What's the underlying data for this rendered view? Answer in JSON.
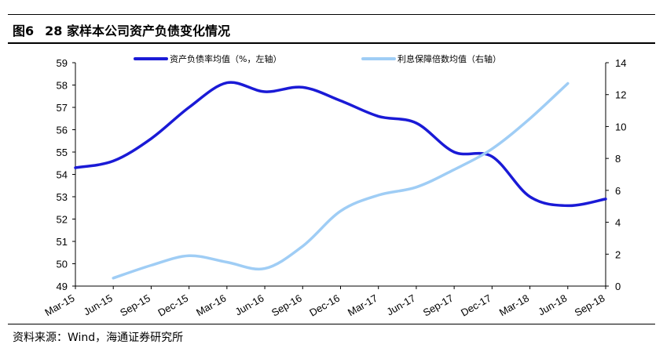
{
  "header": {
    "figure_number": "图6",
    "title": "28 家样本公司资产负债变化情况"
  },
  "footer": {
    "source": "资料来源：Wind，海通证券研究所"
  },
  "chart_data": {
    "type": "line",
    "x_labels": [
      "Mar-15",
      "Jun-15",
      "Sep-15",
      "Dec-15",
      "Mar-16",
      "Jun-16",
      "Sep-16",
      "Dec-16",
      "Mar-17",
      "Jun-17",
      "Sep-17",
      "Dec-17",
      "Mar-18",
      "Jun-18",
      "Sep-18"
    ],
    "y_left": {
      "range": [
        49,
        59
      ],
      "ticks": [
        49,
        50,
        51,
        52,
        53,
        54,
        55,
        56,
        57,
        58,
        59
      ]
    },
    "y_right": {
      "range": [
        0,
        14
      ],
      "ticks": [
        0,
        2,
        4,
        6,
        8,
        10,
        12,
        14
      ]
    },
    "legend_position": "top",
    "series": [
      {
        "name": "资产负债率均值（%，左轴）",
        "axis": "left",
        "color": "#1a1ad6",
        "x": [
          "Mar-15",
          "Jun-15",
          "Sep-15",
          "Dec-15",
          "Mar-16",
          "Jun-16",
          "Sep-16",
          "Dec-16",
          "Mar-17",
          "Jun-17",
          "Sep-17",
          "Dec-17",
          "Mar-18",
          "Jun-18",
          "Sep-18"
        ],
        "values": [
          54.3,
          54.6,
          55.6,
          57.0,
          58.1,
          57.7,
          57.9,
          57.3,
          56.6,
          56.3,
          55.0,
          54.8,
          53.0,
          52.6,
          52.9
        ]
      },
      {
        "name": "利息保障倍数均值（右轴）",
        "axis": "right",
        "color": "#9fcdf5",
        "x": [
          "Jun-15",
          "Sep-15",
          "Dec-15",
          "Mar-16",
          "Jun-16",
          "Sep-16",
          "Dec-16",
          "Mar-17",
          "Jun-17",
          "Sep-17",
          "Dec-17",
          "Mar-18",
          "Jun-18"
        ],
        "values": [
          0.5,
          1.3,
          1.9,
          1.5,
          1.1,
          2.5,
          4.7,
          5.7,
          6.2,
          7.3,
          8.6,
          10.5,
          12.7
        ]
      }
    ],
    "grid": false
  }
}
